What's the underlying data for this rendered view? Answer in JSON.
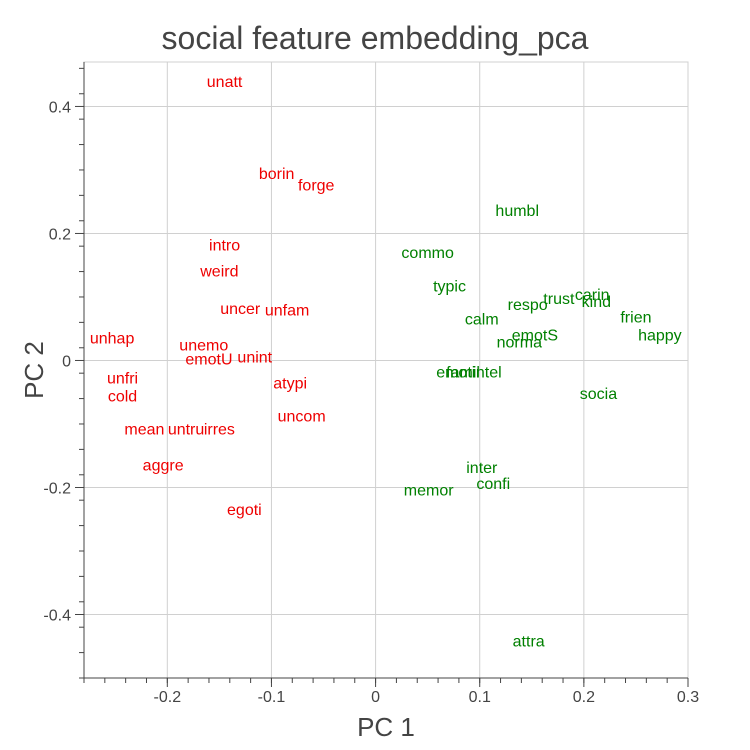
{
  "chart_data": {
    "type": "scatter",
    "title": "social feature embedding_pca",
    "xlabel": "PC 1",
    "ylabel": "PC 2",
    "xlim": [
      -0.28,
      0.3
    ],
    "ylim": [
      -0.5,
      0.47
    ],
    "x_ticks": [
      -0.2,
      -0.1,
      0,
      0.1,
      0.2,
      0.3
    ],
    "x_tick_labels": [
      "-0.2",
      "-0.1",
      "0",
      "0.1",
      "0.2",
      "0.3"
    ],
    "y_ticks": [
      0.4,
      0.2,
      0,
      -0.2,
      -0.4
    ],
    "y_tick_labels": [
      "0.4",
      "0.2",
      "0",
      "-0.2",
      "-0.4"
    ],
    "grid": true,
    "colors": {
      "negative": "#ee0000",
      "positive": "#008000",
      "grid": "#d0d0d0",
      "axis": "#444444"
    },
    "points": [
      {
        "label": "unatt",
        "x": -0.145,
        "y": 0.44,
        "group": "negative"
      },
      {
        "label": "borin",
        "x": -0.095,
        "y": 0.295,
        "group": "negative"
      },
      {
        "label": "forge",
        "x": -0.057,
        "y": 0.277,
        "group": "negative"
      },
      {
        "label": "intro",
        "x": -0.145,
        "y": 0.183,
        "group": "negative"
      },
      {
        "label": "weird",
        "x": -0.15,
        "y": 0.142,
        "group": "negative"
      },
      {
        "label": "uncer",
        "x": -0.13,
        "y": 0.083,
        "group": "negative"
      },
      {
        "label": "unfam",
        "x": -0.085,
        "y": 0.08,
        "group": "negative"
      },
      {
        "label": "unhap",
        "x": -0.253,
        "y": 0.036,
        "group": "negative"
      },
      {
        "label": "unemo",
        "x": -0.165,
        "y": 0.025,
        "group": "negative"
      },
      {
        "label": "emotU",
        "x": -0.16,
        "y": 0.003,
        "group": "negative"
      },
      {
        "label": "unint",
        "x": -0.116,
        "y": 0.006,
        "group": "negative"
      },
      {
        "label": "unfri",
        "x": -0.243,
        "y": -0.027,
        "group": "negative"
      },
      {
        "label": "atypi",
        "x": -0.082,
        "y": -0.035,
        "group": "negative"
      },
      {
        "label": "cold",
        "x": -0.243,
        "y": -0.055,
        "group": "negative"
      },
      {
        "label": "uncom",
        "x": -0.071,
        "y": -0.087,
        "group": "negative"
      },
      {
        "label": "mean",
        "x": -0.222,
        "y": -0.107,
        "group": "negative"
      },
      {
        "label": "untru",
        "x": -0.182,
        "y": -0.107,
        "group": "negative"
      },
      {
        "label": "irres",
        "x": -0.15,
        "y": -0.107,
        "group": "negative"
      },
      {
        "label": "aggre",
        "x": -0.204,
        "y": -0.164,
        "group": "negative"
      },
      {
        "label": "egoti",
        "x": -0.126,
        "y": -0.234,
        "group": "negative"
      },
      {
        "label": "humbl",
        "x": 0.136,
        "y": 0.237,
        "group": "positive"
      },
      {
        "label": "commo",
        "x": 0.05,
        "y": 0.171,
        "group": "positive"
      },
      {
        "label": "typic",
        "x": 0.071,
        "y": 0.118,
        "group": "positive"
      },
      {
        "label": "carin",
        "x": 0.208,
        "y": 0.105,
        "group": "positive"
      },
      {
        "label": "trust",
        "x": 0.176,
        "y": 0.098,
        "group": "positive"
      },
      {
        "label": "kind",
        "x": 0.212,
        "y": 0.094,
        "group": "positive"
      },
      {
        "label": "respo",
        "x": 0.146,
        "y": 0.089,
        "group": "positive"
      },
      {
        "label": "frien",
        "x": 0.25,
        "y": 0.069,
        "group": "positive"
      },
      {
        "label": "calm",
        "x": 0.102,
        "y": 0.066,
        "group": "positive"
      },
      {
        "label": "happy",
        "x": 0.273,
        "y": 0.041,
        "group": "positive"
      },
      {
        "label": "emotS",
        "x": 0.153,
        "y": 0.041,
        "group": "positive"
      },
      {
        "label": "norma",
        "x": 0.138,
        "y": 0.03,
        "group": "positive"
      },
      {
        "label": "emoti",
        "x": 0.077,
        "y": -0.017,
        "group": "positive"
      },
      {
        "label": "famil",
        "x": 0.084,
        "y": -0.017,
        "group": "positive"
      },
      {
        "label": "intel",
        "x": 0.107,
        "y": -0.017,
        "group": "positive"
      },
      {
        "label": "socia",
        "x": 0.214,
        "y": -0.051,
        "group": "positive"
      },
      {
        "label": "inter",
        "x": 0.102,
        "y": -0.168,
        "group": "positive"
      },
      {
        "label": "confi",
        "x": 0.113,
        "y": -0.193,
        "group": "positive"
      },
      {
        "label": "memor",
        "x": 0.051,
        "y": -0.203,
        "group": "positive"
      },
      {
        "label": "attra",
        "x": 0.147,
        "y": -0.441,
        "group": "positive"
      }
    ]
  }
}
